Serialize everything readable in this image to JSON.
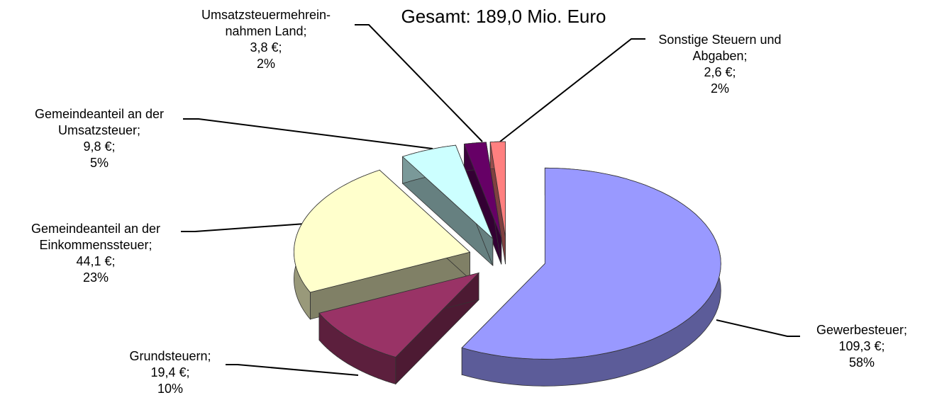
{
  "chart_data": {
    "type": "pie",
    "title": "Gesamt: 189,0 Mio. Euro",
    "categories": [
      "Gewerbesteuer;",
      "Grundsteuern;",
      "Gemeindeanteil an der\nEinkommenssteuer;",
      "Gemeindeanteil an der\nUmsatzsteuer;",
      "Umsatzsteuermehrein-\nnahmen Land;",
      "Sonstige Steuern und\nAbgaben;"
    ],
    "values": [
      109.3,
      19.4,
      44.1,
      9.8,
      3.8,
      2.6
    ],
    "value_labels": [
      "109,3 €;",
      "19,4 €;",
      "44,1 €;",
      "9,8 €;",
      "3,8 €;",
      "2,6 €;"
    ],
    "percentages": [
      58,
      10,
      23,
      5,
      2,
      2
    ],
    "percentage_labels": [
      "58%",
      "10%",
      "23%",
      "5%",
      "2%",
      "2%"
    ],
    "colors": [
      "#9999ff",
      "#993366",
      "#ffffcc",
      "#ccffff",
      "#660066",
      "#ff8080"
    ]
  }
}
